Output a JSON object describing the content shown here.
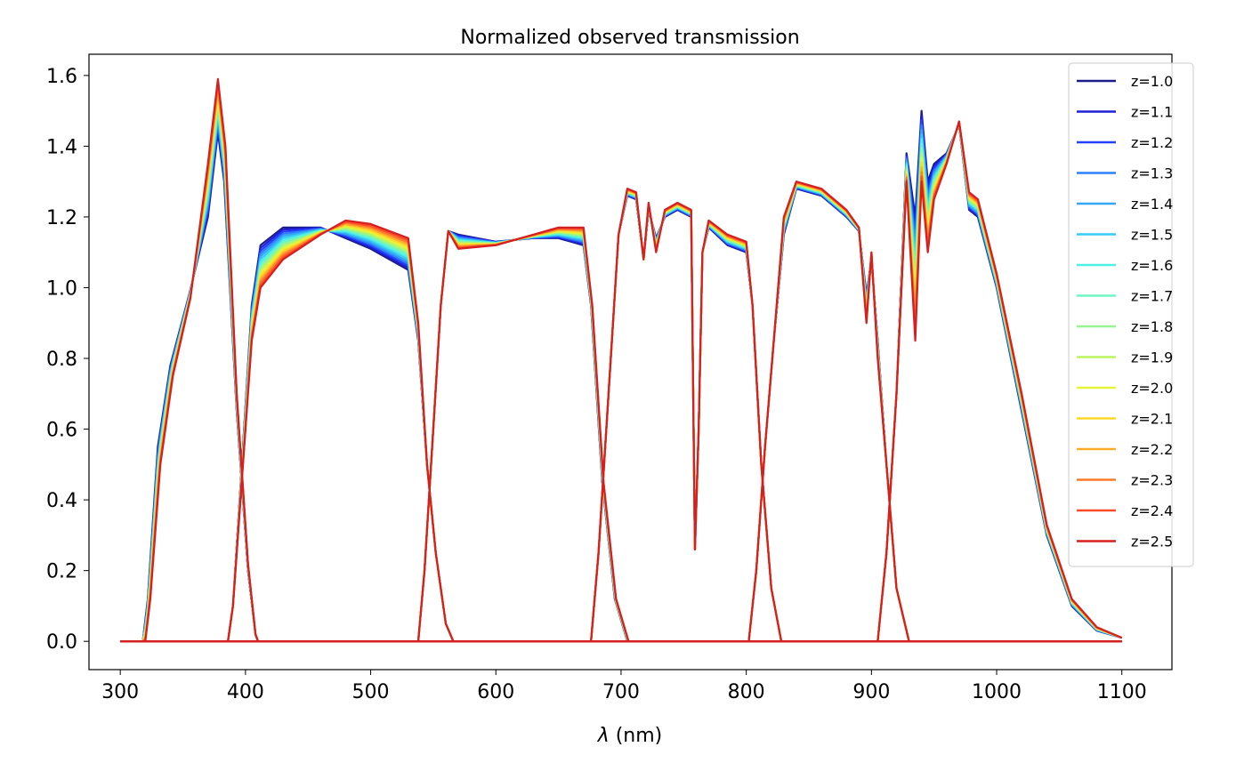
{
  "chart_data": {
    "type": "line",
    "title": "Normalized observed transmission",
    "xlabel_symbol": "λ",
    "xlabel_unit": " (nm)",
    "ylabel": "",
    "xlim": [
      275,
      1140
    ],
    "ylim": [
      -0.08,
      1.66
    ],
    "xticks": [
      300,
      400,
      500,
      600,
      700,
      800,
      900,
      1000,
      1100
    ],
    "yticks": [
      0.0,
      0.2,
      0.4,
      0.6,
      0.8,
      1.0,
      1.2,
      1.4,
      1.6
    ],
    "ytick_labels": [
      "0.0",
      "0.2",
      "0.4",
      "0.6",
      "0.8",
      "1.0",
      "1.2",
      "1.4",
      "1.6"
    ],
    "grid": false,
    "legend_position": "top-right",
    "colormap": "jet",
    "series": [
      {
        "name": "z=1.0",
        "color": "#1c1c8c"
      },
      {
        "name": "z=1.1",
        "color": "#1f1fd6"
      },
      {
        "name": "z=1.2",
        "color": "#2640ff"
      },
      {
        "name": "z=1.3",
        "color": "#2f80ff"
      },
      {
        "name": "z=1.4",
        "color": "#33a8f5"
      },
      {
        "name": "z=1.5",
        "color": "#38ccf5"
      },
      {
        "name": "z=1.6",
        "color": "#4ff0e4"
      },
      {
        "name": "z=1.7",
        "color": "#6ff5c4"
      },
      {
        "name": "z=1.8",
        "color": "#95f590"
      },
      {
        "name": "z=1.9",
        "color": "#bcf560"
      },
      {
        "name": "z=2.0",
        "color": "#e6f536"
      },
      {
        "name": "z=2.1",
        "color": "#ffd82a"
      },
      {
        "name": "z=2.2",
        "color": "#ffac2a"
      },
      {
        "name": "z=2.3",
        "color": "#ff7a2a"
      },
      {
        "name": "z=2.4",
        "color": "#ff4a2a"
      },
      {
        "name": "z=2.5",
        "color": "#d42020"
      }
    ],
    "bands": [
      {
        "name_hidden": "",
        "lo": [
          [
            300,
            0
          ],
          [
            318,
            0
          ],
          [
            322,
            0.12
          ],
          [
            330,
            0.55
          ],
          [
            340,
            0.78
          ],
          [
            355,
            0.98
          ],
          [
            370,
            1.2
          ],
          [
            378,
            1.44
          ],
          [
            383,
            1.3
          ],
          [
            393,
            0.65
          ],
          [
            402,
            0.2
          ],
          [
            408,
            0.02
          ],
          [
            410,
            0
          ],
          [
            1100,
            0
          ]
        ],
        "hi": [
          [
            300,
            0
          ],
          [
            320,
            0
          ],
          [
            324,
            0.12
          ],
          [
            332,
            0.5
          ],
          [
            342,
            0.75
          ],
          [
            356,
            0.97
          ],
          [
            370,
            1.35
          ],
          [
            378,
            1.59
          ],
          [
            384,
            1.4
          ],
          [
            393,
            0.7
          ],
          [
            402,
            0.22
          ],
          [
            408,
            0.02
          ],
          [
            410,
            0
          ],
          [
            1100,
            0
          ]
        ]
      },
      {
        "lo": [
          [
            300,
            0
          ],
          [
            386,
            0
          ],
          [
            390,
            0.1
          ],
          [
            398,
            0.55
          ],
          [
            405,
            0.95
          ],
          [
            412,
            1.12
          ],
          [
            430,
            1.17
          ],
          [
            460,
            1.17
          ],
          [
            500,
            1.11
          ],
          [
            530,
            1.05
          ],
          [
            538,
            0.85
          ],
          [
            545,
            0.5
          ],
          [
            552,
            0.25
          ],
          [
            560,
            0.05
          ],
          [
            566,
            0
          ],
          [
            1100,
            0
          ]
        ],
        "hi": [
          [
            300,
            0
          ],
          [
            386,
            0
          ],
          [
            390,
            0.1
          ],
          [
            398,
            0.5
          ],
          [
            405,
            0.85
          ],
          [
            412,
            1.0
          ],
          [
            430,
            1.08
          ],
          [
            460,
            1.15
          ],
          [
            480,
            1.19
          ],
          [
            500,
            1.18
          ],
          [
            530,
            1.14
          ],
          [
            538,
            0.9
          ],
          [
            545,
            0.5
          ],
          [
            552,
            0.25
          ],
          [
            560,
            0.05
          ],
          [
            566,
            0
          ],
          [
            1100,
            0
          ]
        ]
      },
      {
        "lo": [
          [
            300,
            0
          ],
          [
            538,
            0
          ],
          [
            543,
            0.2
          ],
          [
            550,
            0.6
          ],
          [
            556,
            0.95
          ],
          [
            562,
            1.16
          ],
          [
            570,
            1.15
          ],
          [
            600,
            1.13
          ],
          [
            630,
            1.14
          ],
          [
            650,
            1.14
          ],
          [
            670,
            1.12
          ],
          [
            676,
            0.95
          ],
          [
            685,
            0.45
          ],
          [
            695,
            0.12
          ],
          [
            705,
            0
          ],
          [
            1100,
            0
          ]
        ],
        "hi": [
          [
            300,
            0
          ],
          [
            538,
            0
          ],
          [
            543,
            0.2
          ],
          [
            550,
            0.6
          ],
          [
            556,
            0.95
          ],
          [
            562,
            1.16
          ],
          [
            570,
            1.11
          ],
          [
            600,
            1.12
          ],
          [
            630,
            1.15
          ],
          [
            650,
            1.17
          ],
          [
            670,
            1.17
          ],
          [
            677,
            0.95
          ],
          [
            686,
            0.45
          ],
          [
            696,
            0.12
          ],
          [
            706,
            0
          ],
          [
            1100,
            0
          ]
        ]
      },
      {
        "lo": [
          [
            300,
            0
          ],
          [
            676,
            0
          ],
          [
            682,
            0.25
          ],
          [
            690,
            0.7
          ],
          [
            698,
            1.15
          ],
          [
            705,
            1.26
          ],
          [
            712,
            1.25
          ],
          [
            718,
            1.08
          ],
          [
            722,
            1.22
          ],
          [
            728,
            1.14
          ],
          [
            735,
            1.2
          ],
          [
            745,
            1.22
          ],
          [
            756,
            1.2
          ],
          [
            759,
            0.26
          ],
          [
            762,
            0.6
          ],
          [
            765,
            1.1
          ],
          [
            770,
            1.17
          ],
          [
            785,
            1.12
          ],
          [
            800,
            1.1
          ],
          [
            805,
            0.95
          ],
          [
            812,
            0.5
          ],
          [
            820,
            0.15
          ],
          [
            828,
            0
          ],
          [
            1100,
            0
          ]
        ],
        "hi": [
          [
            300,
            0
          ],
          [
            676,
            0
          ],
          [
            682,
            0.25
          ],
          [
            690,
            0.7
          ],
          [
            698,
            1.15
          ],
          [
            705,
            1.28
          ],
          [
            712,
            1.27
          ],
          [
            718,
            1.08
          ],
          [
            722,
            1.24
          ],
          [
            728,
            1.1
          ],
          [
            735,
            1.22
          ],
          [
            745,
            1.24
          ],
          [
            756,
            1.22
          ],
          [
            759,
            0.26
          ],
          [
            762,
            0.6
          ],
          [
            765,
            1.1
          ],
          [
            770,
            1.19
          ],
          [
            785,
            1.15
          ],
          [
            800,
            1.13
          ],
          [
            805,
            0.95
          ],
          [
            812,
            0.5
          ],
          [
            820,
            0.15
          ],
          [
            828,
            0
          ],
          [
            1100,
            0
          ]
        ]
      },
      {
        "lo": [
          [
            300,
            0
          ],
          [
            802,
            0
          ],
          [
            808,
            0.2
          ],
          [
            815,
            0.55
          ],
          [
            822,
            0.85
          ],
          [
            830,
            1.15
          ],
          [
            840,
            1.28
          ],
          [
            860,
            1.26
          ],
          [
            880,
            1.2
          ],
          [
            890,
            1.16
          ],
          [
            896,
            0.98
          ],
          [
            900,
            1.08
          ],
          [
            905,
            0.85
          ],
          [
            912,
            0.5
          ],
          [
            920,
            0.15
          ],
          [
            930,
            0
          ],
          [
            1100,
            0
          ]
        ],
        "hi": [
          [
            300,
            0
          ],
          [
            802,
            0
          ],
          [
            808,
            0.2
          ],
          [
            815,
            0.55
          ],
          [
            822,
            0.85
          ],
          [
            830,
            1.2
          ],
          [
            840,
            1.3
          ],
          [
            860,
            1.28
          ],
          [
            880,
            1.22
          ],
          [
            890,
            1.17
          ],
          [
            896,
            0.9
          ],
          [
            900,
            1.1
          ],
          [
            905,
            0.8
          ],
          [
            912,
            0.5
          ],
          [
            920,
            0.15
          ],
          [
            930,
            0
          ],
          [
            1100,
            0
          ]
        ]
      },
      {
        "lo": [
          [
            300,
            0
          ],
          [
            905,
            0
          ],
          [
            912,
            0.25
          ],
          [
            920,
            0.7
          ],
          [
            928,
            1.38
          ],
          [
            935,
            1.2
          ],
          [
            940,
            1.5
          ],
          [
            945,
            1.3
          ],
          [
            950,
            1.35
          ],
          [
            960,
            1.38
          ],
          [
            970,
            1.46
          ],
          [
            978,
            1.22
          ],
          [
            985,
            1.2
          ],
          [
            1000,
            1.0
          ],
          [
            1020,
            0.65
          ],
          [
            1040,
            0.3
          ],
          [
            1060,
            0.1
          ],
          [
            1080,
            0.03
          ],
          [
            1100,
            0.01
          ]
        ],
        "hi": [
          [
            300,
            0
          ],
          [
            905,
            0
          ],
          [
            912,
            0.25
          ],
          [
            920,
            0.7
          ],
          [
            928,
            1.3
          ],
          [
            935,
            0.85
          ],
          [
            940,
            1.3
          ],
          [
            945,
            1.1
          ],
          [
            950,
            1.25
          ],
          [
            960,
            1.35
          ],
          [
            970,
            1.47
          ],
          [
            978,
            1.27
          ],
          [
            985,
            1.25
          ],
          [
            1000,
            1.04
          ],
          [
            1020,
            0.7
          ],
          [
            1040,
            0.33
          ],
          [
            1060,
            0.12
          ],
          [
            1080,
            0.04
          ],
          [
            1100,
            0.01
          ]
        ]
      }
    ]
  }
}
